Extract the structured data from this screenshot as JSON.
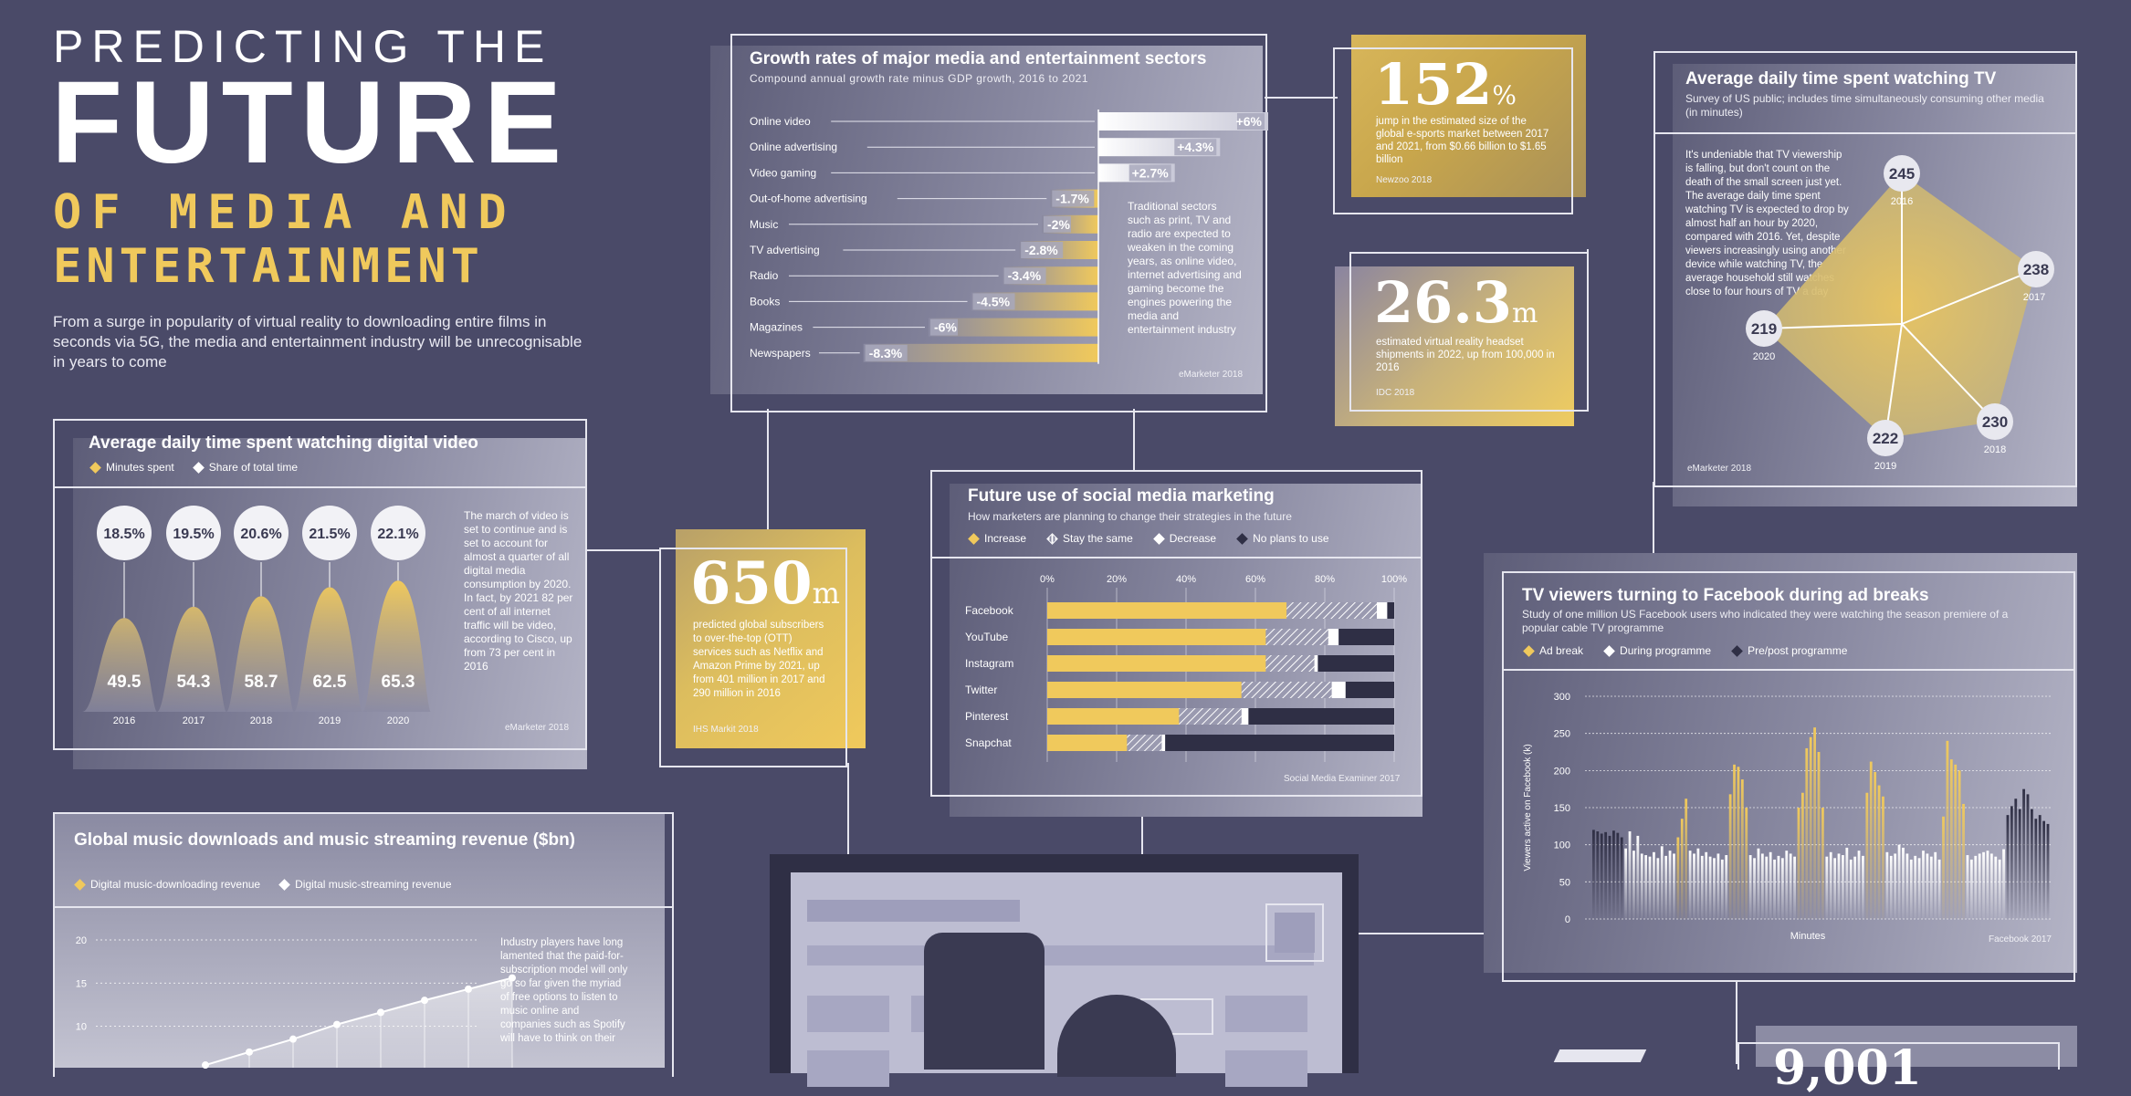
{
  "header": {
    "line1": "PREDICTING THE",
    "line2": "FUTURE",
    "line3": "OF MEDIA AND",
    "line4": "ENTERTAINMENT",
    "intro": "From a surge in popularity of virtual reality to downloading entire films in seconds via 5G, the media and entertainment industry will be unrecognisable in years to come"
  },
  "colors": {
    "background": "#4a4a68",
    "accent": "#f0c95c",
    "dark": "#2f2f45",
    "light": "#ffffff"
  },
  "growth": {
    "title": "Growth rates of major media and entertainment sectors",
    "subtitle": "Compound annual growth rate minus GDP growth, 2016 to 2021",
    "note": "Traditional sectors such as print, TV and radio are expected to weaken in the coming years, as online video, internet advertising and gaming become the engines powering the media and entertainment industry",
    "source": "eMarketer 2018",
    "chart_data": {
      "type": "bar",
      "categories": [
        "Online video",
        "Online advertising",
        "Video gaming",
        "Out-of-home advertising",
        "Music",
        "TV advertising",
        "Radio",
        "Books",
        "Magazines",
        "Newspapers"
      ],
      "values": [
        6,
        4.3,
        2.7,
        -1.7,
        -2,
        -2.8,
        -3.4,
        -4.5,
        -6,
        -8.3
      ],
      "labels": [
        "+6%",
        "+4.3%",
        "+2.7%",
        "-1.7%",
        "-2%",
        "-2.8%",
        "-3.4%",
        "-4.5%",
        "-6%",
        "-8.3%"
      ],
      "title": "Growth rates of major media and entertainment sectors"
    }
  },
  "esports": {
    "value": "152",
    "unit": "%",
    "text": "jump in the estimated size of the global e-sports market between 2017 and 2021, from $0.66 billion to $1.65 billion",
    "source": "Newzoo 2018"
  },
  "vr": {
    "value": "26.3",
    "unit": "m",
    "text": "estimated virtual reality headset shipments in 2022, up from 100,000 in 2016",
    "source": "IDC 2018"
  },
  "ott": {
    "value": "650",
    "unit": "m",
    "text": "predicted global subscribers to over-the-top (OTT) services such as Netflix and Amazon Prime by 2021, up from 401 million in 2017 and 290 million in 2016",
    "source": "IHS Markit 2018"
  },
  "tv_time": {
    "title": "Average daily time spent watching TV",
    "subtitle": "Survey of US public; includes time simultaneously consuming other media (in minutes)",
    "note": "It's undeniable that TV viewership is falling, but don't count on the death of the small screen just yet. The average daily time spent watching TV is expected to drop by almost half an hour by 2020, compared with 2016. Yet, despite viewers increasingly using another device while watching TV, the average household still watches close to four hours of TV a day",
    "source": "eMarketer 2018",
    "chart_data": {
      "type": "radar",
      "categories": [
        "2016",
        "2017",
        "2018",
        "2019",
        "2020"
      ],
      "values": [
        245,
        238,
        230,
        222,
        219
      ]
    }
  },
  "video_time": {
    "title": "Average daily time spent watching digital video",
    "legend": [
      "Minutes spent",
      "Share of total time"
    ],
    "note": "The march of video is set to continue and is set to account for almost a quarter of all digital media consumption by 2020. In fact, by 2021 82 per cent of all internet traffic will be video, according to Cisco, up from 73 per cent in 2016",
    "source": "eMarketer 2018",
    "chart_data": {
      "type": "bar",
      "categories": [
        "2016",
        "2017",
        "2018",
        "2019",
        "2020"
      ],
      "series": [
        {
          "name": "Minutes spent",
          "values": [
            49.5,
            54.3,
            58.7,
            62.5,
            65.3
          ]
        },
        {
          "name": "Share of total time",
          "values": [
            18.5,
            19.5,
            20.6,
            21.5,
            22.1
          ]
        }
      ],
      "minutes_labels": [
        "49.5",
        "54.3",
        "58.7",
        "62.5",
        "65.3"
      ],
      "share_labels": [
        "18.5%",
        "19.5%",
        "20.6%",
        "21.5%",
        "22.1%"
      ]
    }
  },
  "social": {
    "title": "Future use of social media marketing",
    "subtitle": "How marketers are planning to change their strategies in the future",
    "legend": [
      "Increase",
      "Stay the same",
      "Decrease",
      "No plans to use"
    ],
    "source": "Social Media Examiner 2017",
    "chart_data": {
      "type": "bar",
      "stacked": true,
      "categories": [
        "Facebook",
        "YouTube",
        "Instagram",
        "Twitter",
        "Pinterest",
        "Snapchat"
      ],
      "ticks": [
        "0%",
        "20%",
        "40%",
        "60%",
        "80%",
        "100%"
      ],
      "series": [
        {
          "name": "Increase",
          "values": [
            69,
            63,
            63,
            56,
            38,
            23
          ]
        },
        {
          "name": "Stay the same",
          "values": [
            26,
            18,
            14,
            26,
            18,
            10
          ]
        },
        {
          "name": "Decrease",
          "values": [
            3,
            3,
            1,
            4,
            2,
            1
          ]
        },
        {
          "name": "No plans to use",
          "values": [
            2,
            16,
            22,
            14,
            42,
            66
          ]
        }
      ]
    }
  },
  "fb_viewers": {
    "title": "TV viewers turning to Facebook during ad breaks",
    "subtitle": "Study of one million US Facebook users who indicated they were watching the season premiere of a popular cable TV programme",
    "legend": [
      "Ad break",
      "During programme",
      "Pre/post programme"
    ],
    "ylabel": "Viewers active on Facebook (k)",
    "xlabel": "Minutes",
    "source": "Facebook 2017",
    "chart_data": {
      "type": "bar",
      "ylim": [
        0,
        300
      ],
      "yticks": [
        "0",
        "50",
        "100",
        "150",
        "200",
        "250",
        "300"
      ],
      "series": [
        {
          "name": "Pre/post programme",
          "values": [
            120,
            118,
            115,
            117,
            112,
            119,
            116,
            110
          ]
        },
        {
          "name": "During programme",
          "values": [
            95,
            118,
            92,
            112,
            88,
            86,
            84,
            90,
            82,
            98,
            85,
            92,
            88
          ]
        },
        {
          "name": "Ad break",
          "values": [
            110,
            135,
            162
          ]
        },
        {
          "name": "During programme",
          "values": [
            92,
            88,
            95,
            85,
            90,
            84,
            82,
            88,
            80,
            86
          ]
        },
        {
          "name": "Ad break",
          "values": [
            168,
            208,
            205,
            188,
            150
          ]
        },
        {
          "name": "During programme",
          "values": [
            86,
            82,
            95,
            88,
            84,
            90,
            80,
            85,
            82,
            92,
            88,
            84
          ]
        },
        {
          "name": "Ad break",
          "values": [
            150,
            170,
            230,
            245,
            258,
            225,
            150
          ]
        },
        {
          "name": "During programme",
          "values": [
            84,
            90,
            82,
            88,
            86,
            96,
            80,
            84,
            92,
            85
          ]
        },
        {
          "name": "Ad break",
          "values": [
            170,
            212,
            198,
            180,
            165
          ]
        },
        {
          "name": "During programme",
          "values": [
            90,
            85,
            88,
            100,
            96,
            88,
            80,
            85,
            82,
            92,
            88,
            84,
            90,
            80
          ]
        },
        {
          "name": "Ad break",
          "values": [
            138,
            240,
            215,
            208,
            200,
            155
          ]
        },
        {
          "name": "During programme",
          "values": [
            86,
            80,
            85,
            88,
            90,
            92,
            88,
            84,
            80,
            94
          ]
        },
        {
          "name": "Pre/post programme",
          "values": [
            140,
            152,
            162,
            148,
            175,
            168,
            148,
            135,
            140,
            132,
            128
          ]
        }
      ]
    }
  },
  "music": {
    "title": "Global music downloads and music streaming revenue ($bn)",
    "legend": [
      "Digital music-downloading revenue",
      "Digital music-streaming revenue"
    ],
    "note": "Industry players have long lamented that the paid-for-subscription model will only go so far given the myriad of free options to listen to music online and companies such as Spotify will have to think on their",
    "chart_data": {
      "type": "area",
      "yticks": [
        "20",
        "15",
        "10"
      ],
      "series": [
        {
          "name": "Digital music-streaming revenue",
          "values": [
            5.5,
            7.0,
            8.5,
            10.2,
            11.6,
            13.0,
            14.3,
            15.6
          ]
        }
      ]
    }
  },
  "bottom_teaser": {
    "value": "9,001"
  }
}
